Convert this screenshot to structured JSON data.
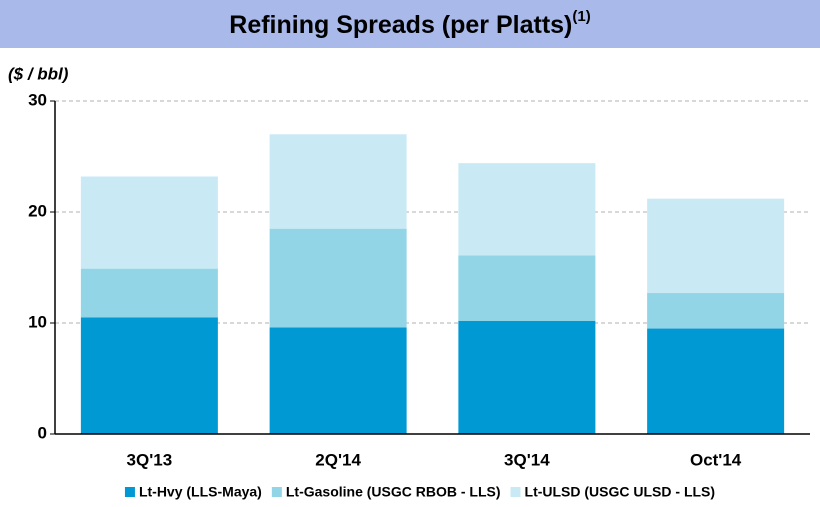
{
  "chart_data": {
    "type": "stacked_bar",
    "title": "Refining Spreads (per Platts)",
    "title_superscript": "(1)",
    "y_label": "($ / bbl)",
    "categories": [
      "3Q'13",
      "2Q'14",
      "3Q'14",
      "Oct'14"
    ],
    "series": [
      {
        "name": "Lt-Hvy (LLS-Maya)",
        "color": "#0099d4",
        "values": [
          10.5,
          9.6,
          10.2,
          9.5
        ]
      },
      {
        "name": "Lt-Gasoline (USGC RBOB - LLS)",
        "color": "#91d5e7",
        "values": [
          4.4,
          8.9,
          5.9,
          3.2
        ]
      },
      {
        "name": "Lt-ULSD (USGC ULSD - LLS)",
        "color": "#c9eaf4",
        "values": [
          8.3,
          8.5,
          8.3,
          8.5
        ]
      }
    ],
    "ylim": [
      0,
      30
    ],
    "yticks": [
      0,
      10,
      20,
      30
    ],
    "grid": true
  }
}
